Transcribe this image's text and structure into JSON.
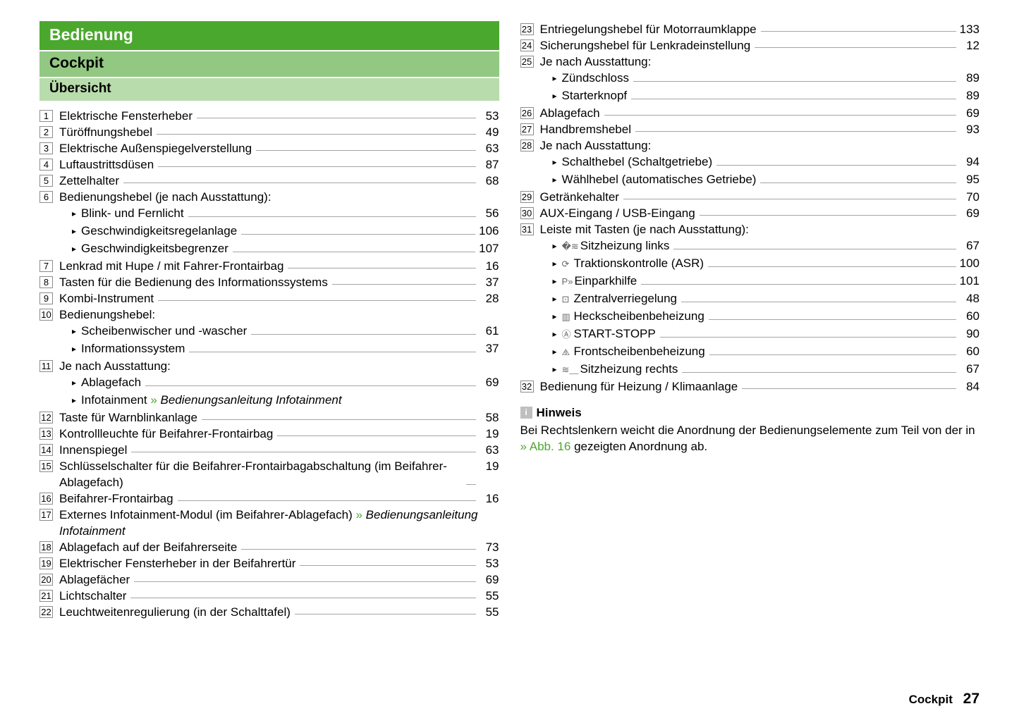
{
  "headers": {
    "h1": "Bedienung",
    "h2": "Cockpit",
    "h3": "Übersicht"
  },
  "left": [
    {
      "n": "1",
      "lines": [
        {
          "t": "Elektrische Fensterheber",
          "p": "53"
        }
      ]
    },
    {
      "n": "2",
      "lines": [
        {
          "t": "Türöffnungshebel",
          "p": "49"
        }
      ]
    },
    {
      "n": "3",
      "lines": [
        {
          "t": "Elektrische Außenspiegelverstellung",
          "p": "63"
        }
      ]
    },
    {
      "n": "4",
      "lines": [
        {
          "t": "Luftaustrittsdüsen",
          "p": "87"
        }
      ]
    },
    {
      "n": "5",
      "lines": [
        {
          "t": "Zettelhalter",
          "p": "68"
        }
      ]
    },
    {
      "n": "6",
      "head": "Bedienungshebel (je nach Ausstattung):",
      "subs": [
        {
          "t": "Blink- und Fernlicht",
          "p": "56"
        },
        {
          "t": "Geschwindigkeitsregelanlage",
          "p": "106"
        },
        {
          "t": "Geschwindigkeitsbegrenzer",
          "p": "107"
        }
      ]
    },
    {
      "n": "7",
      "lines": [
        {
          "t": "Lenkrad mit Hupe / mit Fahrer-Frontairbag",
          "p": "16"
        }
      ]
    },
    {
      "n": "8",
      "lines": [
        {
          "t": "Tasten für die Bedienung des Informationssystems",
          "p": "37"
        }
      ]
    },
    {
      "n": "9",
      "lines": [
        {
          "t": "Kombi-Instrument",
          "p": "28"
        }
      ]
    },
    {
      "n": "10",
      "head": "Bedienungshebel:",
      "subs": [
        {
          "t": "Scheibenwischer und -wascher",
          "p": "61"
        },
        {
          "t": "Informationssystem",
          "p": "37"
        }
      ]
    },
    {
      "n": "11",
      "head": "Je nach Ausstattung:",
      "subs": [
        {
          "t": "Ablagefach",
          "p": "69"
        },
        {
          "t_html": "Infotainment <span class='linkgreen'>»</span> <span class='ital'>Bedienungsanleitung Infotainment</span>"
        }
      ]
    },
    {
      "n": "12",
      "lines": [
        {
          "t": "Taste für Warnblinkanlage",
          "p": "58"
        }
      ]
    },
    {
      "n": "13",
      "lines": [
        {
          "t": "Kontrollleuchte für Beifahrer-Frontairbag",
          "p": "19"
        }
      ]
    },
    {
      "n": "14",
      "lines": [
        {
          "t": "Innenspiegel",
          "p": "63"
        }
      ]
    },
    {
      "n": "15",
      "lines": [
        {
          "t": "Schlüsselschalter für die Beifahrer-Frontairbagabschaltung (im Beifahrer-Ablagefach)",
          "p": "19"
        }
      ]
    },
    {
      "n": "16",
      "lines": [
        {
          "t": "Beifahrer-Frontairbag",
          "p": "16"
        }
      ]
    },
    {
      "n": "17",
      "lines": [
        {
          "t_html": "Externes Infotainment-Modul (im Beifahrer-Ablagefach) <span class='linkgreen'>»</span> <span class='ital'>Bedienungsanleitung Infotainment</span>"
        }
      ]
    },
    {
      "n": "18",
      "lines": [
        {
          "t": "Ablagefach auf der Beifahrerseite",
          "p": "73"
        }
      ]
    },
    {
      "n": "19",
      "lines": [
        {
          "t": "Elektrischer Fensterheber in der Beifahrertür",
          "p": "53"
        }
      ]
    },
    {
      "n": "20",
      "lines": [
        {
          "t": "Ablagefächer",
          "p": "69"
        }
      ]
    },
    {
      "n": "21",
      "lines": [
        {
          "t": "Lichtschalter",
          "p": "55"
        }
      ]
    },
    {
      "n": "22",
      "lines": [
        {
          "t": "Leuchtweitenregulierung (in der Schalttafel)",
          "p": "55"
        }
      ]
    }
  ],
  "right": [
    {
      "n": "23",
      "lines": [
        {
          "t": "Entriegelungshebel für Motorraumklappe",
          "p": "133"
        }
      ]
    },
    {
      "n": "24",
      "lines": [
        {
          "t": "Sicherungshebel für Lenkradeinstellung",
          "p": "12"
        }
      ]
    },
    {
      "n": "25",
      "head": "Je nach Ausstattung:",
      "subs": [
        {
          "t": "Zündschloss",
          "p": "89"
        },
        {
          "t": "Starterknopf",
          "p": "89"
        }
      ]
    },
    {
      "n": "26",
      "lines": [
        {
          "t": "Ablagefach",
          "p": "69"
        }
      ]
    },
    {
      "n": "27",
      "lines": [
        {
          "t": "Handbremshebel",
          "p": "93"
        }
      ]
    },
    {
      "n": "28",
      "head": "Je nach Ausstattung:",
      "subs": [
        {
          "t": "Schalthebel (Schaltgetriebe)",
          "p": "94"
        },
        {
          "t": "Wählhebel (automatisches Getriebe)",
          "p": "95"
        }
      ]
    },
    {
      "n": "29",
      "lines": [
        {
          "t": "Getränkehalter",
          "p": "70"
        }
      ]
    },
    {
      "n": "30",
      "lines": [
        {
          "t": "AUX-Eingang / USB-Eingang",
          "p": "69"
        }
      ]
    },
    {
      "n": "31",
      "head": "Leiste mit Tasten (je nach Ausstattung):",
      "subs": [
        {
          "sym": "�≋",
          "t": "Sitzheizung links",
          "p": "67"
        },
        {
          "sym": "⟳",
          "t": "Traktionskontrolle (ASR)",
          "p": "100"
        },
        {
          "sym": "P»",
          "t": "Einparkhilfe",
          "p": "101"
        },
        {
          "sym": "⊡",
          "t": "Zentralverriegelung",
          "p": "48"
        },
        {
          "sym": "▥",
          "t": "Heckscheibenbeheizung",
          "p": "60"
        },
        {
          "sym": "Ⓐ",
          "t": "START-STOPP",
          "p": "90"
        },
        {
          "sym": "⧌",
          "t": "Frontscheibenbeheizung",
          "p": "60"
        },
        {
          "sym": "≋⸏",
          "t": "Sitzheizung rechts",
          "p": "67"
        }
      ]
    },
    {
      "n": "32",
      "lines": [
        {
          "t": "Bedienung für Heizung / Klimaanlage",
          "p": "84"
        }
      ]
    }
  ],
  "hinweis": {
    "title": "Hinweis",
    "text_pre": "Bei Rechtslenkern weicht die Anordnung der Bedienungselemente zum Teil von der in ",
    "link": "» Abb. 16",
    "text_post": " gezeigten Anordnung ab."
  },
  "footer": {
    "section": "Cockpit",
    "page": "27"
  }
}
